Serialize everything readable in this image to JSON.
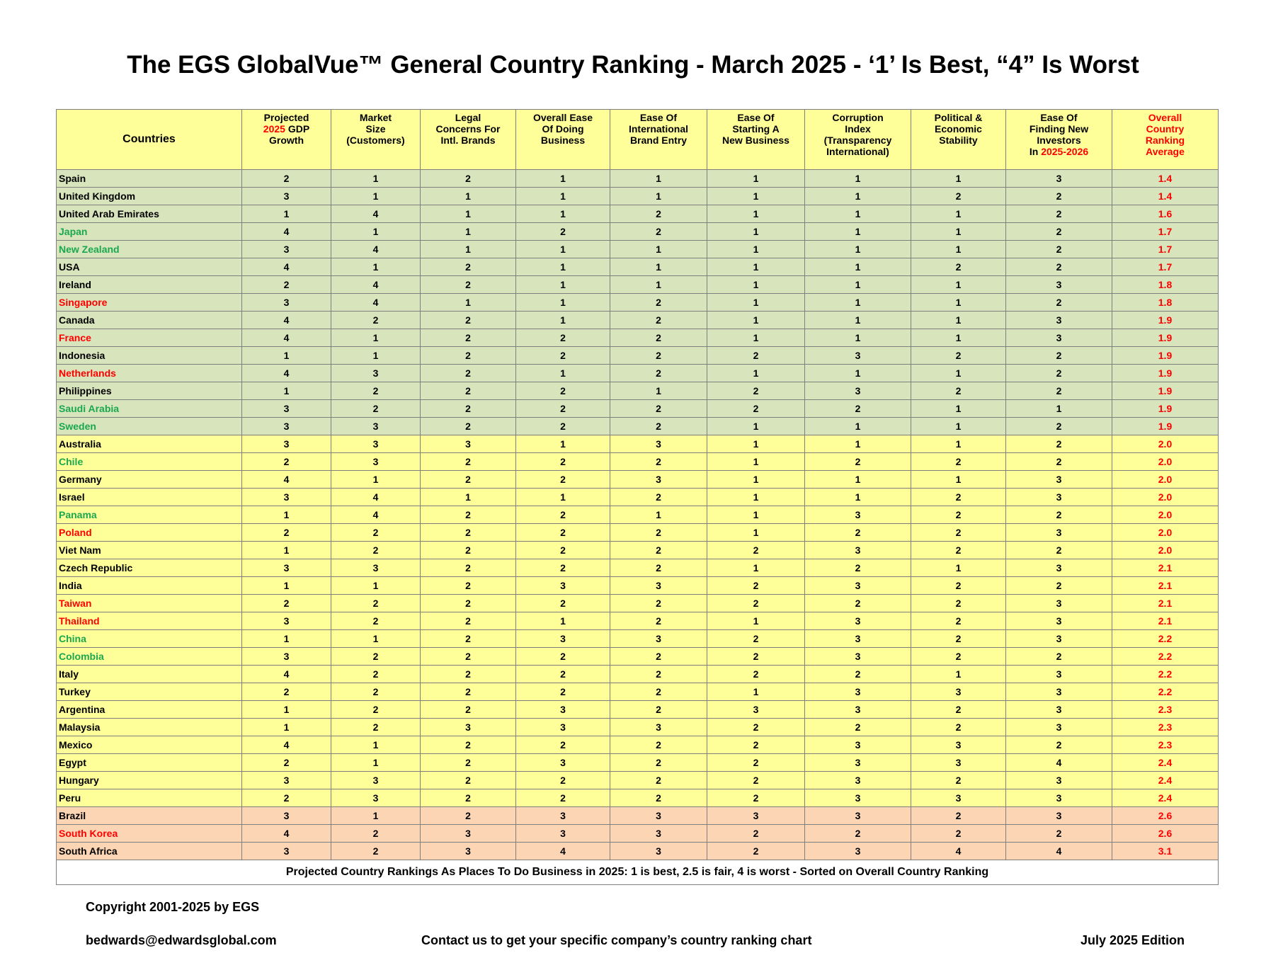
{
  "title": "The EGS GlobalVue™ General Country Ranking - March 2025 - ‘1’ Is Best, “4” Is Worst",
  "header": {
    "countries": "Countries",
    "gdp": {
      "l1": "Projected",
      "l2_red": "2025",
      "l2": " GDP",
      "l3": "Growth"
    },
    "market": {
      "l1": "Market",
      "l2": "Size",
      "l3": "(Customers)"
    },
    "legal": {
      "l1": "Legal",
      "l2": "Concerns For",
      "l3": "Intl. Brands"
    },
    "ease_doing": {
      "l1": "Overall Ease",
      "l2": "Of Doing",
      "l3": "Business"
    },
    "brand_entry": {
      "l1": "Ease Of",
      "l2": "International",
      "l3": "Brand Entry"
    },
    "starting": {
      "l1": "Ease Of",
      "l2": "Starting A",
      "l3": "New Business"
    },
    "corruption": {
      "l1": "Corruption",
      "l2": "Index",
      "l3": "(Transparency",
      "l4": "International)"
    },
    "political": {
      "l1": "Political &",
      "l2": "Economic",
      "l3": "Stability"
    },
    "investors": {
      "l1": "Ease Of",
      "l2": "Finding New",
      "l3": "Investors",
      "l4": "In ",
      "l4_red": "2025-2026"
    },
    "overall": {
      "l1": "Overall",
      "l2": "Country",
      "l3": "Ranking",
      "l4": "Average"
    }
  },
  "rows": [
    {
      "country": "Spain",
      "cc": "black",
      "band": "green",
      "v": [
        2,
        1,
        2,
        1,
        1,
        1,
        1,
        1,
        3
      ],
      "avg": "1.4"
    },
    {
      "country": "United Kingdom",
      "cc": "black",
      "band": "green",
      "v": [
        3,
        1,
        1,
        1,
        1,
        1,
        1,
        2,
        2
      ],
      "avg": "1.4"
    },
    {
      "country": "United Arab Emirates",
      "cc": "black",
      "band": "green",
      "v": [
        1,
        4,
        1,
        1,
        2,
        1,
        1,
        1,
        2
      ],
      "avg": "1.6"
    },
    {
      "country": "Japan",
      "cc": "green",
      "band": "green",
      "v": [
        4,
        1,
        1,
        2,
        2,
        1,
        1,
        1,
        2
      ],
      "avg": "1.7"
    },
    {
      "country": "New Zealand",
      "cc": "green",
      "band": "green",
      "v": [
        3,
        4,
        1,
        1,
        1,
        1,
        1,
        1,
        2
      ],
      "avg": "1.7"
    },
    {
      "country": "USA",
      "cc": "black",
      "band": "green",
      "v": [
        4,
        1,
        2,
        1,
        1,
        1,
        1,
        2,
        2
      ],
      "avg": "1.7"
    },
    {
      "country": "Ireland",
      "cc": "black",
      "band": "green",
      "v": [
        2,
        4,
        2,
        1,
        1,
        1,
        1,
        1,
        3
      ],
      "avg": "1.8"
    },
    {
      "country": "Singapore",
      "cc": "red",
      "band": "green",
      "v": [
        3,
        4,
        1,
        1,
        2,
        1,
        1,
        1,
        2
      ],
      "avg": "1.8"
    },
    {
      "country": "Canada",
      "cc": "black",
      "band": "green",
      "v": [
        4,
        2,
        2,
        1,
        2,
        1,
        1,
        1,
        3
      ],
      "avg": "1.9"
    },
    {
      "country": "France",
      "cc": "red",
      "band": "green",
      "v": [
        4,
        1,
        2,
        2,
        2,
        1,
        1,
        1,
        3
      ],
      "avg": "1.9"
    },
    {
      "country": "Indonesia",
      "cc": "black",
      "band": "green",
      "v": [
        1,
        1,
        2,
        2,
        2,
        2,
        3,
        2,
        2
      ],
      "avg": "1.9"
    },
    {
      "country": "Netherlands",
      "cc": "red",
      "band": "green",
      "v": [
        4,
        3,
        2,
        1,
        2,
        1,
        1,
        1,
        2
      ],
      "avg": "1.9"
    },
    {
      "country": "Philippines",
      "cc": "black",
      "band": "green",
      "v": [
        1,
        2,
        2,
        2,
        1,
        2,
        3,
        2,
        2
      ],
      "avg": "1.9"
    },
    {
      "country": "Saudi Arabia",
      "cc": "green",
      "band": "green",
      "v": [
        3,
        2,
        2,
        2,
        2,
        2,
        2,
        1,
        1
      ],
      "avg": "1.9"
    },
    {
      "country": "Sweden",
      "cc": "green",
      "band": "green",
      "v": [
        3,
        3,
        2,
        2,
        2,
        1,
        1,
        1,
        2
      ],
      "avg": "1.9"
    },
    {
      "country": "Australia",
      "cc": "black",
      "band": "yellow",
      "v": [
        3,
        3,
        3,
        1,
        3,
        1,
        1,
        1,
        2
      ],
      "avg": "2.0"
    },
    {
      "country": "Chile",
      "cc": "green",
      "band": "yellow",
      "v": [
        2,
        3,
        2,
        2,
        2,
        1,
        2,
        2,
        2
      ],
      "avg": "2.0"
    },
    {
      "country": "Germany",
      "cc": "black",
      "band": "yellow",
      "v": [
        4,
        1,
        2,
        2,
        3,
        1,
        1,
        1,
        3
      ],
      "avg": "2.0"
    },
    {
      "country": "Israel",
      "cc": "black",
      "band": "yellow",
      "v": [
        3,
        4,
        1,
        1,
        2,
        1,
        1,
        2,
        3
      ],
      "avg": "2.0"
    },
    {
      "country": "Panama",
      "cc": "green",
      "band": "yellow",
      "v": [
        1,
        4,
        2,
        2,
        1,
        1,
        3,
        2,
        2
      ],
      "avg": "2.0"
    },
    {
      "country": "Poland",
      "cc": "red",
      "band": "yellow",
      "v": [
        2,
        2,
        2,
        2,
        2,
        1,
        2,
        2,
        3
      ],
      "avg": "2.0"
    },
    {
      "country": "Viet Nam",
      "cc": "black",
      "band": "yellow",
      "v": [
        1,
        2,
        2,
        2,
        2,
        2,
        3,
        2,
        2
      ],
      "avg": "2.0"
    },
    {
      "country": "Czech Republic",
      "cc": "black",
      "band": "yellow",
      "v": [
        3,
        3,
        2,
        2,
        2,
        1,
        2,
        1,
        3
      ],
      "avg": "2.1"
    },
    {
      "country": "India",
      "cc": "black",
      "band": "yellow",
      "v": [
        1,
        1,
        2,
        3,
        3,
        2,
        3,
        2,
        2
      ],
      "avg": "2.1"
    },
    {
      "country": "Taiwan",
      "cc": "red",
      "band": "yellow",
      "v": [
        2,
        2,
        2,
        2,
        2,
        2,
        2,
        2,
        3
      ],
      "avg": "2.1"
    },
    {
      "country": "Thailand",
      "cc": "red",
      "band": "yellow",
      "v": [
        3,
        2,
        2,
        1,
        2,
        1,
        3,
        2,
        3
      ],
      "avg": "2.1"
    },
    {
      "country": "China",
      "cc": "green",
      "band": "yellow",
      "v": [
        1,
        1,
        2,
        3,
        3,
        2,
        3,
        2,
        3
      ],
      "avg": "2.2"
    },
    {
      "country": "Colombia",
      "cc": "green",
      "band": "yellow",
      "v": [
        3,
        2,
        2,
        2,
        2,
        2,
        3,
        2,
        2
      ],
      "avg": "2.2"
    },
    {
      "country": "Italy",
      "cc": "black",
      "band": "yellow",
      "v": [
        4,
        2,
        2,
        2,
        2,
        2,
        2,
        1,
        3
      ],
      "avg": "2.2"
    },
    {
      "country": "Turkey",
      "cc": "black",
      "band": "yellow",
      "v": [
        2,
        2,
        2,
        2,
        2,
        1,
        3,
        3,
        3
      ],
      "avg": "2.2"
    },
    {
      "country": "Argentina",
      "cc": "black",
      "band": "yellow",
      "v": [
        1,
        2,
        2,
        3,
        2,
        3,
        3,
        2,
        3
      ],
      "avg": "2.3"
    },
    {
      "country": "Malaysia",
      "cc": "black",
      "band": "yellow",
      "v": [
        1,
        2,
        3,
        3,
        3,
        2,
        2,
        2,
        3
      ],
      "avg": "2.3"
    },
    {
      "country": "Mexico",
      "cc": "black",
      "band": "yellow",
      "v": [
        4,
        1,
        2,
        2,
        2,
        2,
        3,
        3,
        2
      ],
      "avg": "2.3"
    },
    {
      "country": "Egypt",
      "cc": "black",
      "band": "yellow",
      "v": [
        2,
        1,
        2,
        3,
        2,
        2,
        3,
        3,
        4
      ],
      "avg": "2.4"
    },
    {
      "country": "Hungary",
      "cc": "black",
      "band": "yellow",
      "v": [
        3,
        3,
        2,
        2,
        2,
        2,
        3,
        2,
        3
      ],
      "avg": "2.4"
    },
    {
      "country": "Peru",
      "cc": "black",
      "band": "yellow",
      "v": [
        2,
        3,
        2,
        2,
        2,
        2,
        3,
        3,
        3
      ],
      "avg": "2.4"
    },
    {
      "country": "Brazil",
      "cc": "black",
      "band": "orange",
      "v": [
        3,
        1,
        2,
        3,
        3,
        3,
        3,
        2,
        3
      ],
      "avg": "2.6"
    },
    {
      "country": "South Korea",
      "cc": "red",
      "band": "orange",
      "v": [
        4,
        2,
        3,
        3,
        3,
        2,
        2,
        2,
        2
      ],
      "avg": "2.6"
    },
    {
      "country": "South Africa",
      "cc": "black",
      "band": "orange",
      "v": [
        3,
        2,
        3,
        4,
        3,
        2,
        3,
        4,
        4
      ],
      "avg": "3.1"
    }
  ],
  "table_footer": "Projected Country Rankings As Places To Do Business in 2025: 1 is best, 2.5 is fair, 4 is worst - Sorted on Overall Country Ranking",
  "footer": {
    "copyright": "Copyright 2001-2025 by EGS",
    "email": "bedwards@edwardsglobal.com",
    "contact": "Contact  us to get your specific company’s country ranking chart",
    "edition": "July 2025 Edition"
  },
  "colors": {
    "band_green": "#d8e4bc",
    "band_yellow": "#ffff99",
    "band_orange": "#fcd5b4",
    "country_green": "#1aa84f",
    "highlight_red": "#ff0000"
  }
}
